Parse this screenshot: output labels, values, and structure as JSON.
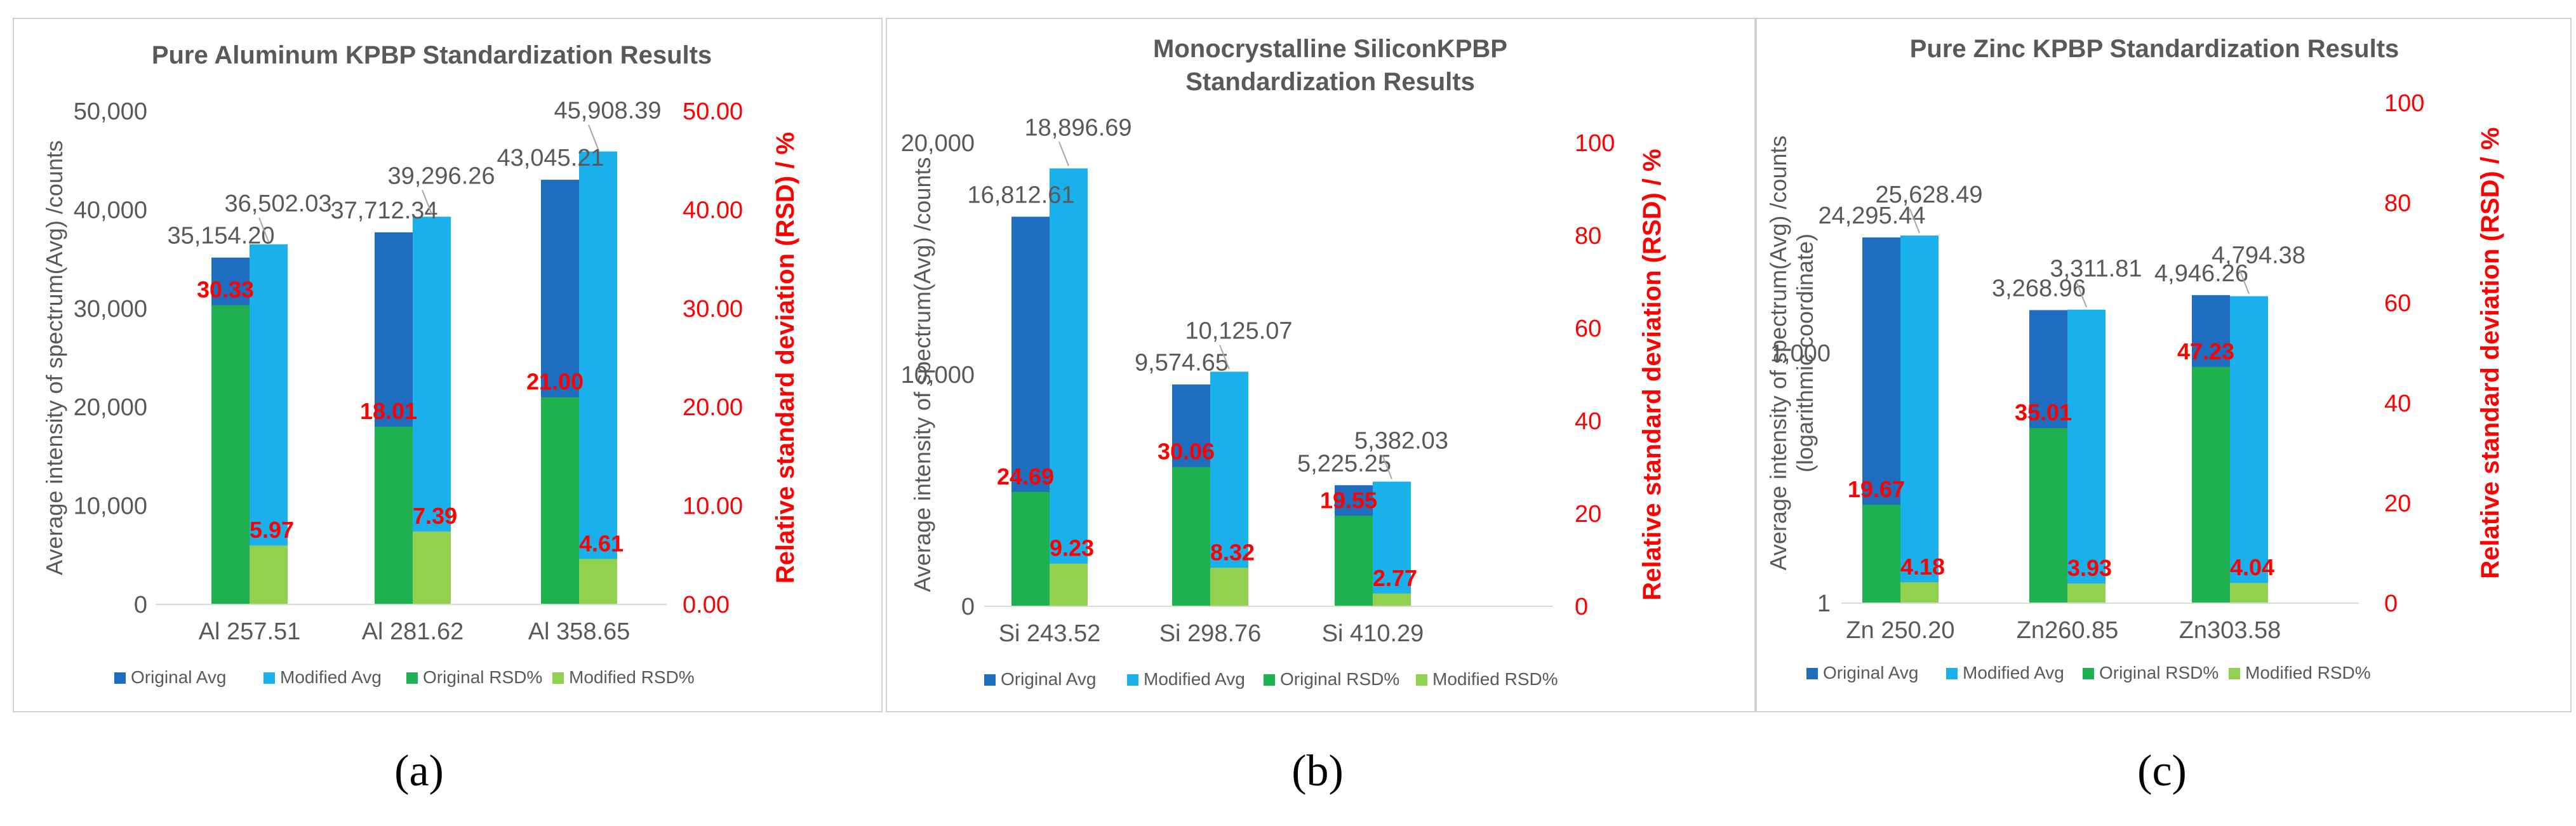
{
  "colors": {
    "original_avg": "#1f6dbf",
    "modified_avg": "#1ab0ec",
    "original_rsd": "#1fb050",
    "modified_rsd": "#92d050",
    "rsd_axis": "#ff0000",
    "text": "#595959",
    "grid": "#d9d9d9"
  },
  "panels": [
    {
      "label": "(a)"
    },
    {
      "label": "(b)"
    },
    {
      "label": "(c)"
    }
  ],
  "chart_data": [
    {
      "type": "bar",
      "title": "Pure Aluminum KPBP Standardization Results",
      "ylabel": "Average intensity of spectrum(Avg) /counts",
      "y2label": "Relative standard deviation (RSD) / %",
      "ylim": [
        0,
        50000
      ],
      "yticks": [
        "0",
        "10,000",
        "20,000",
        "30,000",
        "40,000",
        "50,000"
      ],
      "y2lim": [
        0,
        50
      ],
      "y2ticks": [
        "0.00",
        "10.00",
        "20.00",
        "30.00",
        "40.00",
        "50.00"
      ],
      "categories": [
        "Al 257.51",
        "Al 281.62",
        "Al 358.65"
      ],
      "series": [
        {
          "name": "Original Avg",
          "values": [
            35154.2,
            37712.34,
            43045.21
          ],
          "labels": [
            "35,154.20",
            "37,712.34",
            "43,045.21"
          ]
        },
        {
          "name": "Modified Avg",
          "values": [
            36502.03,
            39296.26,
            45908.39
          ],
          "labels": [
            "36,502.03",
            "39,296.26",
            "45,908.39"
          ]
        },
        {
          "name": "Original RSD%",
          "values": [
            30.33,
            18.01,
            21.0
          ],
          "labels": [
            "30.33",
            "18.01",
            "21.00"
          ]
        },
        {
          "name": "Modified RSD%",
          "values": [
            5.97,
            7.39,
            4.61
          ],
          "labels": [
            "5.97",
            "7.39",
            "4.61"
          ]
        }
      ],
      "legend_position": "bottom"
    },
    {
      "type": "bar",
      "title": "Monocrystalline SiliconKPBP Standardization Results",
      "ylabel": "Average intensity of spectrum(Avg) /counts",
      "y2label": "Relative standard deviation (RSD) / %",
      "ylim": [
        0,
        20000
      ],
      "yticks": [
        "0",
        "10,000",
        "20,000"
      ],
      "y2lim": [
        0,
        100
      ],
      "y2ticks": [
        "0",
        "20",
        "40",
        "60",
        "80",
        "100"
      ],
      "categories": [
        "Si 243.52",
        "Si 298.76",
        "Si 410.29"
      ],
      "series": [
        {
          "name": "Original Avg",
          "values": [
            16812.61,
            9574.65,
            5225.25
          ],
          "labels": [
            "16,812.61",
            "9,574.65",
            "5,225.25"
          ]
        },
        {
          "name": "Modified Avg",
          "values": [
            18896.69,
            10125.07,
            5382.03
          ],
          "labels": [
            "18,896.69",
            "10,125.07",
            "5,382.03"
          ]
        },
        {
          "name": "Original RSD%",
          "values": [
            24.69,
            30.06,
            19.55
          ],
          "labels": [
            "24.69",
            "30.06",
            "19.55"
          ]
        },
        {
          "name": "Modified RSD%",
          "values": [
            9.23,
            8.32,
            2.77
          ],
          "labels": [
            "9.23",
            "8.32",
            "2.77"
          ]
        }
      ],
      "legend_position": "bottom"
    },
    {
      "type": "bar",
      "title": "Pure Zinc KPBP Standardization Results",
      "ylabel": "Average intensity of spectrum(Avg) /counts (logarithmic coordinate)",
      "ylabel_line1": "Average intensity of spectrum(Avg) /counts",
      "ylabel_line2": "(logarithmic coordinate)",
      "y2label": "Relative standard deviation (RSD) / %",
      "yscale": "log",
      "ylim": [
        1,
        1000000
      ],
      "yticks": [
        "1",
        "1,000"
      ],
      "y2lim": [
        0,
        100
      ],
      "y2ticks": [
        "0",
        "20",
        "40",
        "60",
        "80",
        "100"
      ],
      "categories": [
        "Zn 250.20",
        "Zn260.85",
        "Zn303.58"
      ],
      "series": [
        {
          "name": "Original Avg",
          "values": [
            24295.44,
            3268.96,
            4946.26
          ],
          "labels": [
            "24,295.44",
            "3,268.96",
            "4,946.26"
          ]
        },
        {
          "name": "Modified Avg",
          "values": [
            25628.49,
            3311.81,
            4794.38
          ],
          "labels": [
            "25,628.49",
            "3,311.81",
            "4,794.38"
          ]
        },
        {
          "name": "Original RSD%",
          "values": [
            19.67,
            35.01,
            47.23
          ],
          "labels": [
            "19.67",
            "35.01",
            "47.23"
          ]
        },
        {
          "name": "Modified RSD%",
          "values": [
            4.18,
            3.93,
            4.04
          ],
          "labels": [
            "4.18",
            "3.93",
            "4.04"
          ]
        }
      ],
      "legend_position": "bottom"
    }
  ]
}
